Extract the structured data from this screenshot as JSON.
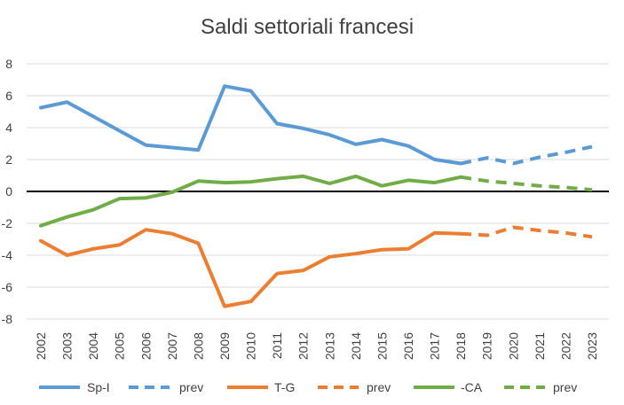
{
  "chart_data": {
    "type": "line",
    "title": "Saldi settoriali francesi",
    "xlabel": "",
    "ylabel": "",
    "x": [
      "2002",
      "2003",
      "2004",
      "2005",
      "2006",
      "2007",
      "2008",
      "2009",
      "2010",
      "2011",
      "2012",
      "2013",
      "2014",
      "2015",
      "2016",
      "2017",
      "2018",
      "2019",
      "2020",
      "2021",
      "2022",
      "2023"
    ],
    "ylim": [
      -8,
      8
    ],
    "yticks": [
      -8,
      -6,
      -4,
      -2,
      0,
      2,
      4,
      6,
      8
    ],
    "ytick_labels": [
      "-8",
      "-6",
      "-4",
      "-2",
      "0",
      "2",
      "4",
      "6",
      "8"
    ],
    "grid": true,
    "legend_position": "bottom",
    "series": [
      {
        "name": "Sp-I",
        "color": "#5B9BD5",
        "style": "solid",
        "values": [
          5.25,
          5.6,
          4.7,
          3.8,
          2.9,
          2.75,
          2.6,
          6.6,
          6.3,
          4.25,
          3.95,
          3.55,
          2.95,
          3.25,
          2.85,
          2.0,
          1.75,
          null,
          null,
          null,
          null,
          null
        ]
      },
      {
        "name": "prev",
        "color": "#5B9BD5",
        "style": "dashed",
        "values": [
          null,
          null,
          null,
          null,
          null,
          null,
          null,
          null,
          null,
          null,
          null,
          null,
          null,
          null,
          null,
          null,
          1.75,
          2.1,
          1.75,
          2.15,
          2.45,
          2.8
        ]
      },
      {
        "name": "T-G",
        "color": "#ED7D31",
        "style": "solid",
        "values": [
          -3.1,
          -4.0,
          -3.6,
          -3.35,
          -2.4,
          -2.65,
          -3.25,
          -7.2,
          -6.9,
          -5.15,
          -4.95,
          -4.1,
          -3.9,
          -3.65,
          -3.6,
          -2.6,
          -2.65,
          null,
          null,
          null,
          null,
          null
        ]
      },
      {
        "name": "prev",
        "color": "#ED7D31",
        "style": "dashed",
        "values": [
          null,
          null,
          null,
          null,
          null,
          null,
          null,
          null,
          null,
          null,
          null,
          null,
          null,
          null,
          null,
          null,
          -2.65,
          -2.75,
          -2.25,
          -2.45,
          -2.6,
          -2.85
        ]
      },
      {
        "name": "-CA",
        "color": "#70AD47",
        "style": "solid",
        "values": [
          -2.15,
          -1.6,
          -1.15,
          -0.45,
          -0.4,
          -0.05,
          0.65,
          0.55,
          0.6,
          0.8,
          0.95,
          0.5,
          0.95,
          0.35,
          0.7,
          0.55,
          0.9,
          null,
          null,
          null,
          null,
          null
        ]
      },
      {
        "name": "prev",
        "color": "#70AD47",
        "style": "dashed",
        "values": [
          null,
          null,
          null,
          null,
          null,
          null,
          null,
          null,
          null,
          null,
          null,
          null,
          null,
          null,
          null,
          null,
          0.9,
          0.65,
          0.5,
          0.35,
          0.25,
          0.1
        ]
      }
    ],
    "zero_line": true
  }
}
